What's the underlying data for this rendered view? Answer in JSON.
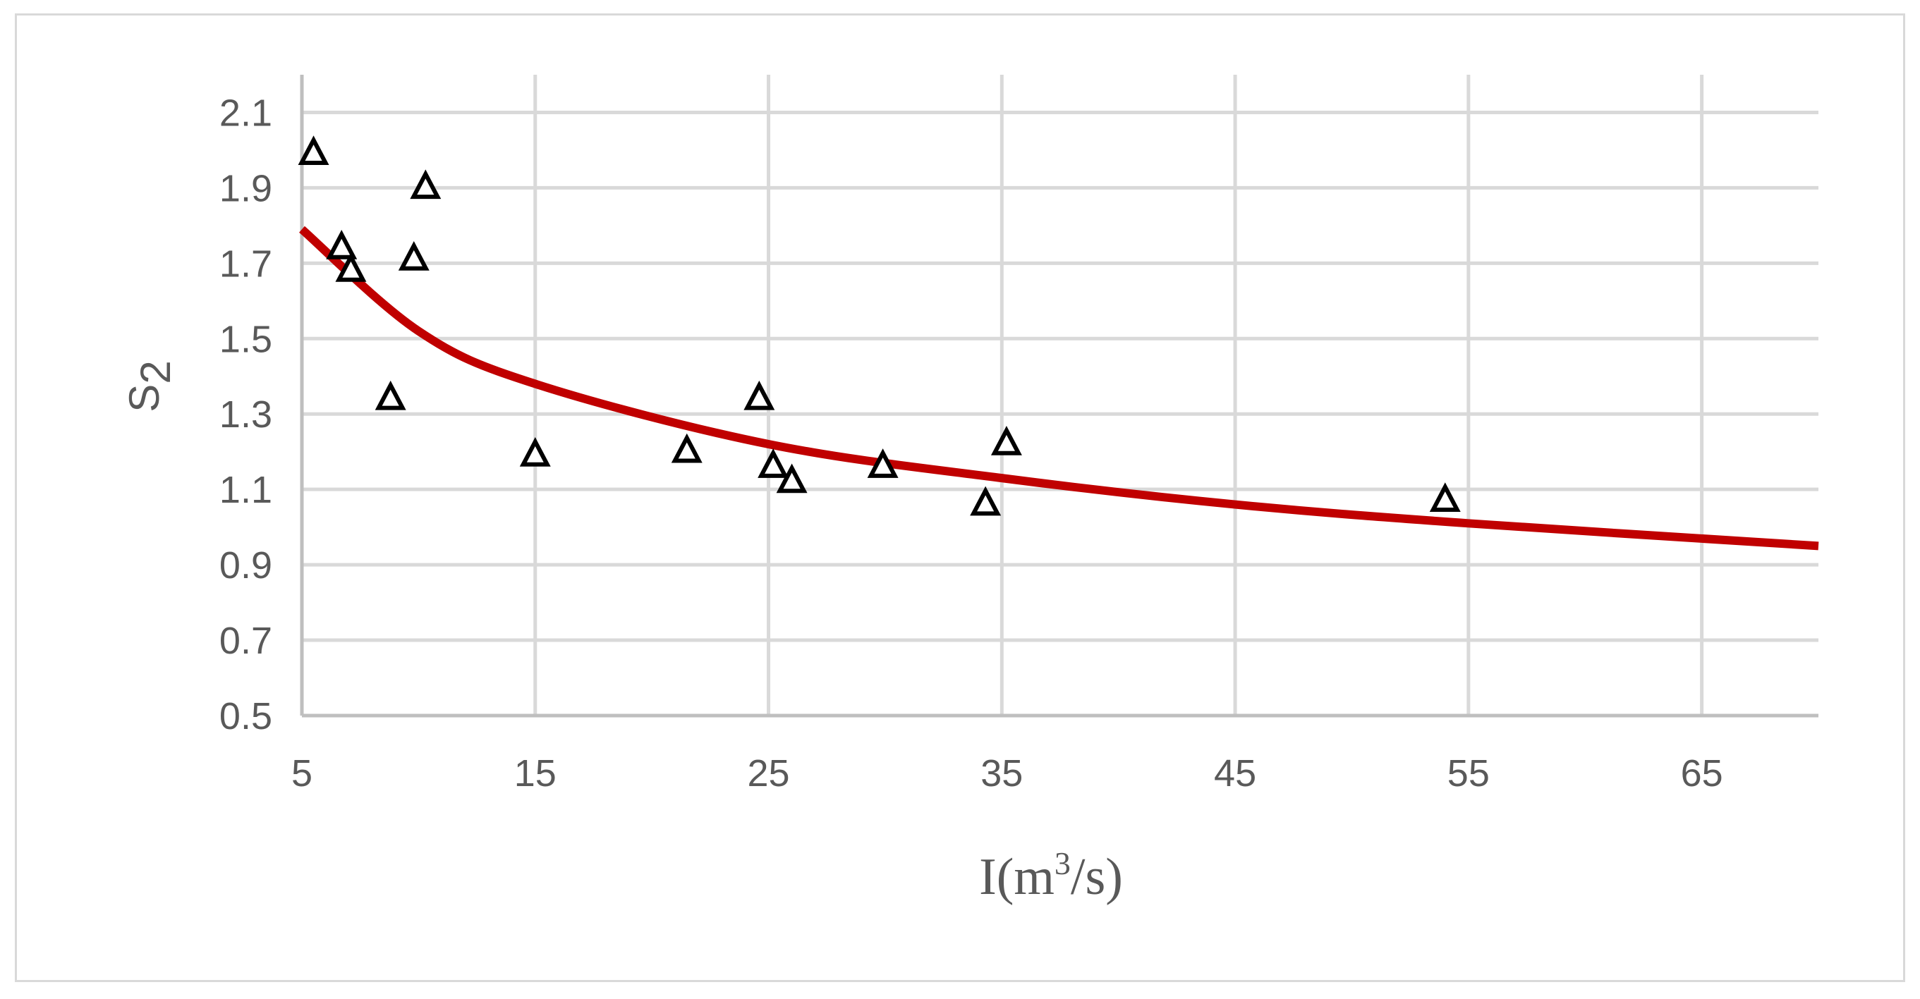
{
  "chart_data": {
    "type": "scatter",
    "title": "",
    "xlabel": {
      "base": "I(m",
      "sup": "3",
      "rest": "/s)"
    },
    "ylabel": {
      "base": "S",
      "sub": "2"
    },
    "xlim": [
      5,
      70
    ],
    "ylim": [
      0.5,
      2.2
    ],
    "x_ticks": [
      5,
      15,
      25,
      35,
      45,
      55,
      65
    ],
    "x_tick_labels": [
      "5",
      "15",
      "25",
      "35",
      "45",
      "55",
      "65"
    ],
    "y_ticks": [
      0.5,
      0.7,
      0.9,
      1.1,
      1.3,
      1.5,
      1.7,
      1.9,
      2.1
    ],
    "y_tick_labels": [
      "0.5",
      "0.7",
      "0.9",
      "1.1",
      "1.3",
      "1.5",
      "1.7",
      "1.9",
      "2.1"
    ],
    "grid": true,
    "legend": "none",
    "marker": "open-triangle",
    "marker_color": "#000000",
    "trend_color": "#c00000",
    "series": [
      {
        "values": [
          {
            "x": 5.5,
            "y": 1.99
          },
          {
            "x": 6.7,
            "y": 1.74
          },
          {
            "x": 7.1,
            "y": 1.68
          },
          {
            "x": 8.8,
            "y": 1.34
          },
          {
            "x": 9.8,
            "y": 1.71
          },
          {
            "x": 10.3,
            "y": 1.9
          },
          {
            "x": 15.0,
            "y": 1.19
          },
          {
            "x": 21.5,
            "y": 1.2
          },
          {
            "x": 24.6,
            "y": 1.34
          },
          {
            "x": 25.2,
            "y": 1.16
          },
          {
            "x": 26.0,
            "y": 1.12
          },
          {
            "x": 29.9,
            "y": 1.16
          },
          {
            "x": 34.3,
            "y": 1.06
          },
          {
            "x": 35.2,
            "y": 1.22
          },
          {
            "x": 54.0,
            "y": 1.07
          }
        ]
      }
    ],
    "trendline": {
      "type": "power",
      "points": [
        {
          "x": 5,
          "y": 1.79
        },
        {
          "x": 10,
          "y": 1.52
        },
        {
          "x": 15,
          "y": 1.38
        },
        {
          "x": 25,
          "y": 1.22
        },
        {
          "x": 35,
          "y": 1.13
        },
        {
          "x": 45,
          "y": 1.06
        },
        {
          "x": 55,
          "y": 1.01
        },
        {
          "x": 70,
          "y": 0.95
        }
      ]
    }
  }
}
